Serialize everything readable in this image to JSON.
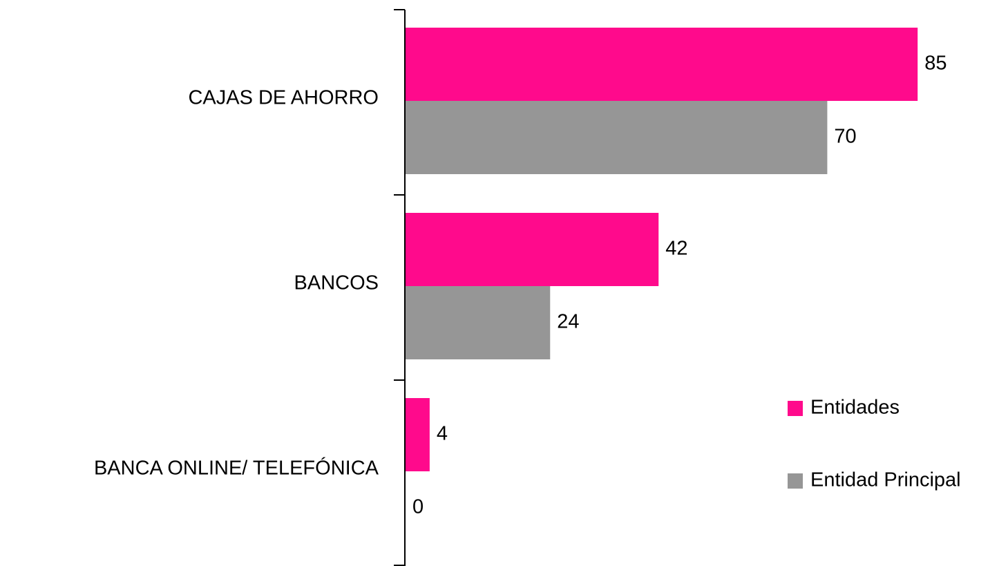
{
  "chart_data": {
    "type": "bar",
    "orientation": "horizontal",
    "categories": [
      "CAJAS DE AHORRO",
      "BANCOS",
      "BANCA ONLINE/ TELEFÓNICA"
    ],
    "series": [
      {
        "name": "Entidades",
        "color": "#ff0a8c",
        "values": [
          85,
          42,
          4
        ]
      },
      {
        "name": "Entidad Principal",
        "color": "#969696",
        "values": [
          70,
          24,
          0
        ]
      }
    ],
    "xlim": [
      0,
      100
    ],
    "legend": "right"
  }
}
